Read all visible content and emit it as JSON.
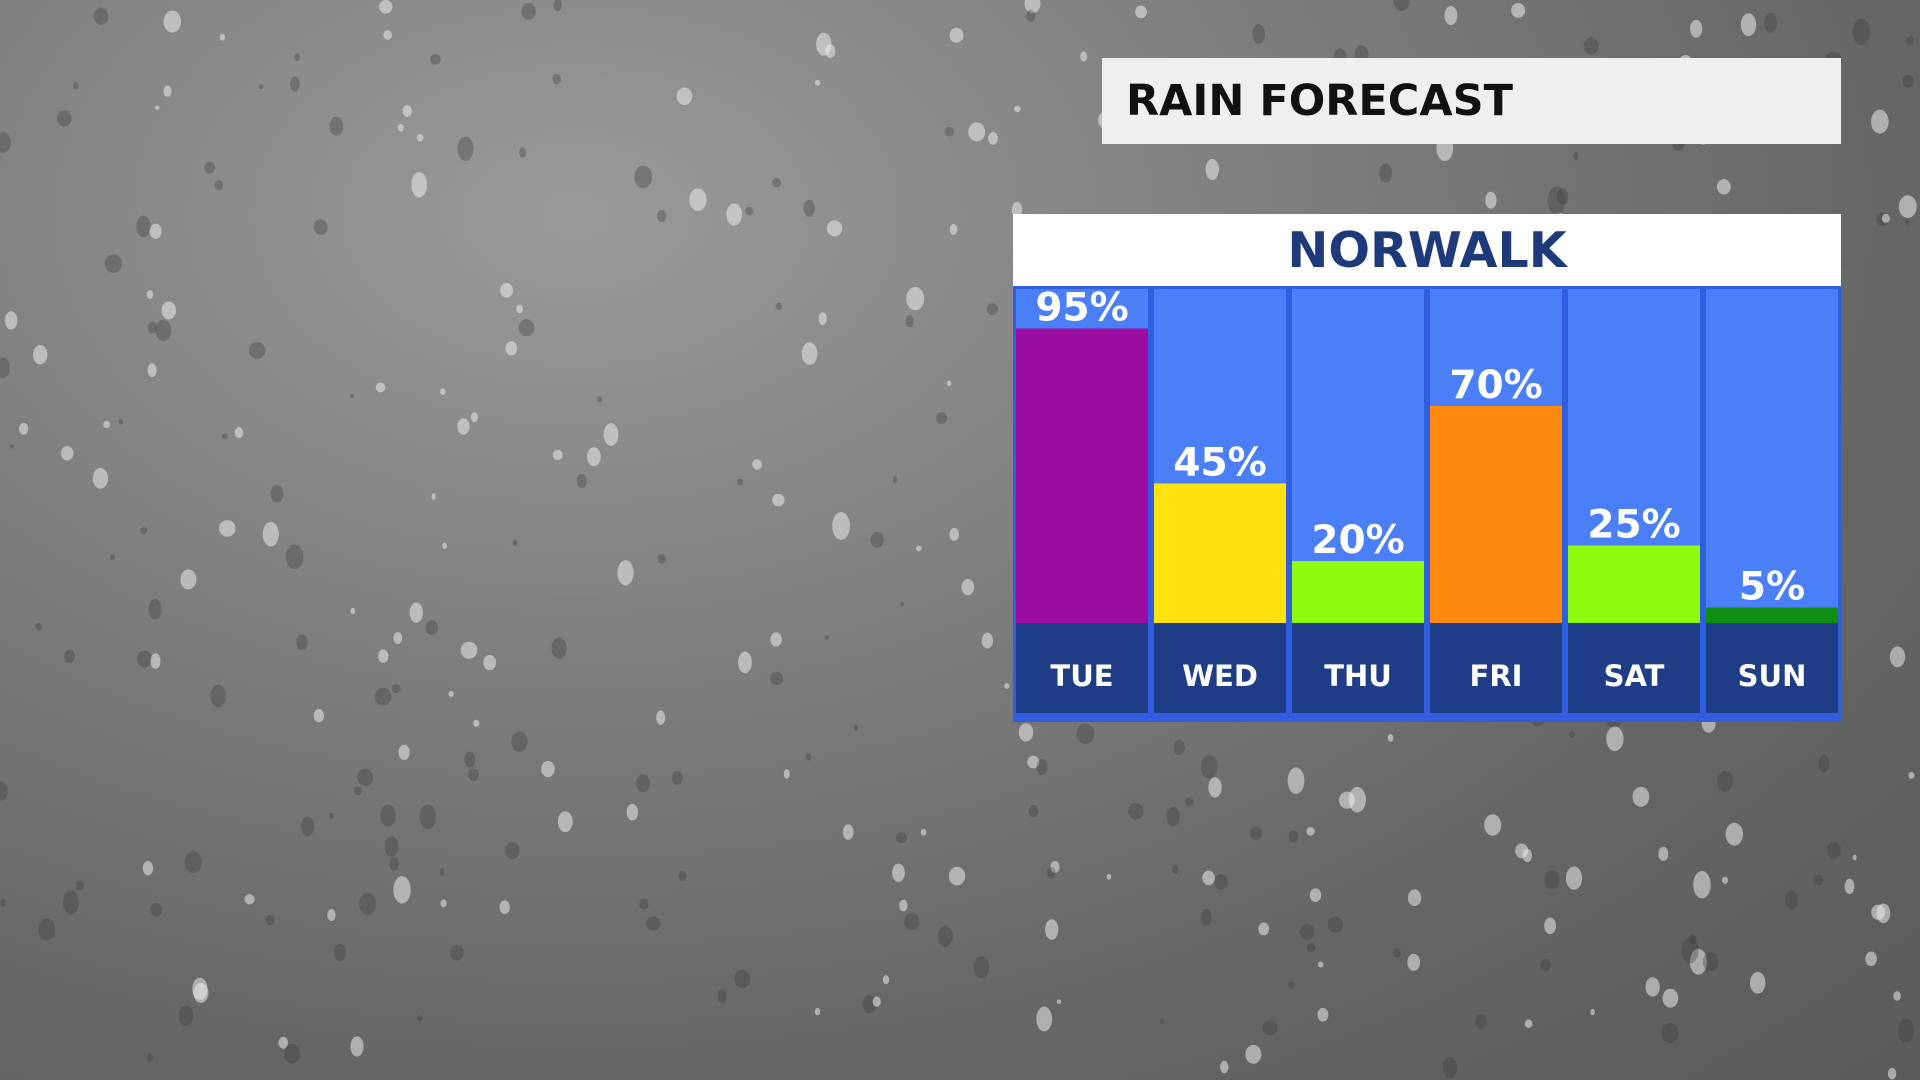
{
  "header": {
    "title": "RAIN FORECAST"
  },
  "location": {
    "name": "NORWALK"
  },
  "colors": {
    "column_bg": "#4a7ff7",
    "day_band": "#1f3d87",
    "border": "#2f5fe0",
    "label_text": "#ffffff"
  },
  "chart_data": {
    "type": "bar",
    "title": "RAIN FORECAST",
    "subtitle": "NORWALK",
    "categories": [
      "TUE",
      "WED",
      "THU",
      "FRI",
      "SAT",
      "SUN"
    ],
    "values": [
      95,
      45,
      20,
      70,
      25,
      5
    ],
    "value_labels": [
      "95%",
      "45%",
      "20%",
      "70%",
      "25%",
      "5%"
    ],
    "bar_colors": [
      "#9a0d9e",
      "#ffe20f",
      "#8efc0f",
      "#ff8a0d",
      "#8efc0f",
      "#0e8f14"
    ],
    "ylim": [
      0,
      100
    ],
    "grid": false,
    "legend": "none"
  }
}
